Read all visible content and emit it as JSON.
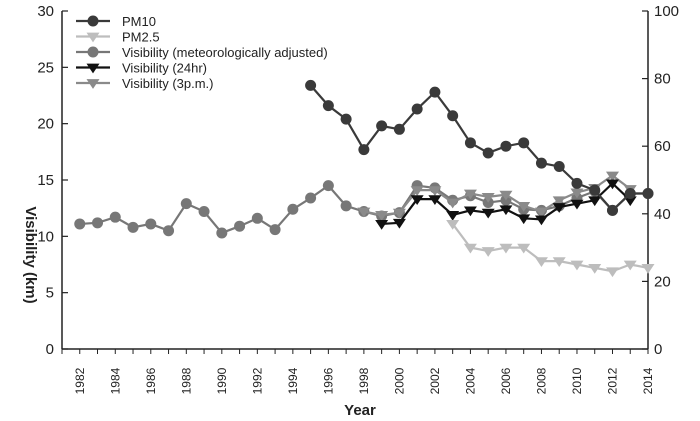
{
  "chart_data": {
    "type": "line",
    "xlabel": "Year",
    "ylabel": "Visibility (km)",
    "xlim": [
      1981,
      2014
    ],
    "ylim": [
      0,
      30
    ],
    "y2lim": [
      0,
      100
    ],
    "x_ticks": [
      1982,
      1984,
      1986,
      1988,
      1990,
      1992,
      1994,
      1996,
      1998,
      2000,
      2002,
      2004,
      2006,
      2008,
      2010,
      2012,
      2014
    ],
    "y_ticks": [
      0,
      5,
      10,
      15,
      20,
      25,
      30
    ],
    "y2_ticks": [
      0,
      20,
      40,
      60,
      80,
      100
    ],
    "legend_position": "top-left",
    "series": [
      {
        "name": "PM10",
        "axis": "right",
        "color": "#3a3a3a",
        "marker": "circle",
        "x": [
          1995,
          1996,
          1997,
          1998,
          1999,
          2000,
          2001,
          2002,
          2003,
          2004,
          2005,
          2006,
          2007,
          2008,
          2009,
          2010,
          2011,
          2012,
          2013,
          2014
        ],
        "values": [
          78,
          72,
          68,
          59,
          66,
          65,
          71,
          76,
          69,
          61,
          58,
          60,
          61,
          55,
          54,
          49,
          47,
          41,
          46,
          46
        ]
      },
      {
        "name": "PM2.5",
        "axis": "right",
        "color": "#bdbdbd",
        "marker": "triangle-down",
        "x": [
          2003,
          2004,
          2005,
          2006,
          2007,
          2008,
          2009,
          2010,
          2011,
          2012,
          2013,
          2014
        ],
        "values": [
          37,
          30,
          29,
          30,
          30,
          26,
          26,
          25,
          24,
          23,
          25,
          24
        ]
      },
      {
        "name": "Visibility (meteorologically adjusted)",
        "axis": "left",
        "color": "#777777",
        "marker": "circle",
        "x": [
          1982,
          1983,
          1984,
          1985,
          1986,
          1987,
          1988,
          1989,
          1990,
          1991,
          1992,
          1993,
          1994,
          1995,
          1996,
          1997,
          1998,
          1999,
          2000,
          2001,
          2002,
          2003,
          2004,
          2005,
          2006,
          2007,
          2008,
          2009,
          2010,
          2011,
          2012,
          2013,
          2014
        ],
        "values": [
          11.1,
          11.2,
          11.7,
          10.8,
          11.1,
          10.5,
          12.9,
          12.2,
          10.3,
          10.9,
          11.6,
          10.6,
          12.4,
          13.4,
          14.5,
          12.7,
          12.2,
          11.8,
          12.1,
          14.5,
          14.3,
          13.2,
          13.6,
          13.0,
          13.2,
          12.4,
          12.3,
          12.7,
          13.4,
          14.0,
          12.3,
          13.8,
          13.8
        ]
      },
      {
        "name": "Visibility (24hr)",
        "axis": "left",
        "color": "#111111",
        "marker": "triangle-down",
        "x": [
          1999,
          2000,
          2001,
          2002,
          2003,
          2004,
          2005,
          2006,
          2007,
          2008,
          2009,
          2010,
          2011,
          2012,
          2013
        ],
        "values": [
          11.1,
          11.2,
          13.3,
          13.3,
          11.9,
          12.3,
          12.1,
          12.4,
          11.6,
          11.5,
          12.6,
          12.9,
          13.2,
          14.7,
          13.2
        ]
      },
      {
        "name": "Visibility (3p.m.)",
        "axis": "left",
        "color": "#8a8a8a",
        "marker": "triangle-down",
        "x": [
          1998,
          1999,
          2000,
          2001,
          2002,
          2003,
          2004,
          2005,
          2006,
          2007,
          2008,
          2009,
          2010,
          2011,
          2012,
          2013
        ],
        "values": [
          12.2,
          11.9,
          12.1,
          14.1,
          14.1,
          13.0,
          13.8,
          13.5,
          13.7,
          12.7,
          12.2,
          13.2,
          13.9,
          14.3,
          15.4,
          14.2
        ]
      }
    ]
  }
}
